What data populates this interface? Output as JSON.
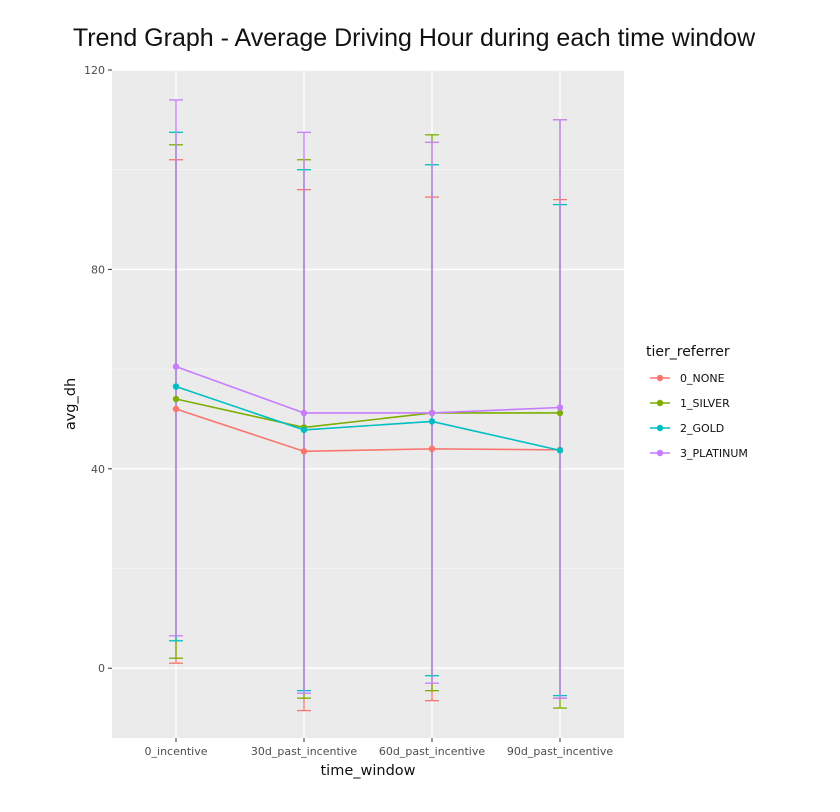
{
  "chart_data": {
    "type": "line",
    "title": "Trend Graph - Average Driving Hour during each time window",
    "xlabel": "time_window",
    "ylabel": "avg_dh",
    "categories": [
      "0_incentive",
      "30d_past_incentive",
      "60d_past_incentive",
      "90d_past_incentive"
    ],
    "ylim": [
      -14,
      120
    ],
    "yticks": [
      0,
      40,
      80,
      120
    ],
    "grid": true,
    "legend_title": "tier_referrer",
    "legend_position": "right",
    "series": [
      {
        "name": "0_NONE",
        "color": "#F8766D",
        "values": [
          52,
          43.5,
          44,
          43.8
        ],
        "upper": [
          102,
          96,
          94.5,
          94
        ],
        "lower": [
          1,
          -8.5,
          -6.5,
          -6
        ]
      },
      {
        "name": "1_SILVER",
        "color": "#7CAE00",
        "values": [
          54,
          48.3,
          51.2,
          51.2
        ],
        "upper": [
          105,
          102,
          107,
          110
        ],
        "lower": [
          2,
          -6,
          -4.5,
          -8
        ]
      },
      {
        "name": "2_GOLD",
        "color": "#00BFC4",
        "values": [
          56.5,
          47.8,
          49.5,
          43.7
        ],
        "upper": [
          107.5,
          100,
          101,
          93
        ],
        "lower": [
          5.5,
          -4.5,
          -1.5,
          -5.5
        ]
      },
      {
        "name": "3_PLATINUM",
        "color": "#C77CFF",
        "values": [
          60.5,
          51.2,
          51.2,
          52.3
        ],
        "upper": [
          114,
          107.5,
          105.5,
          110
        ],
        "lower": [
          6.5,
          -5,
          -3,
          -6
        ]
      }
    ]
  }
}
